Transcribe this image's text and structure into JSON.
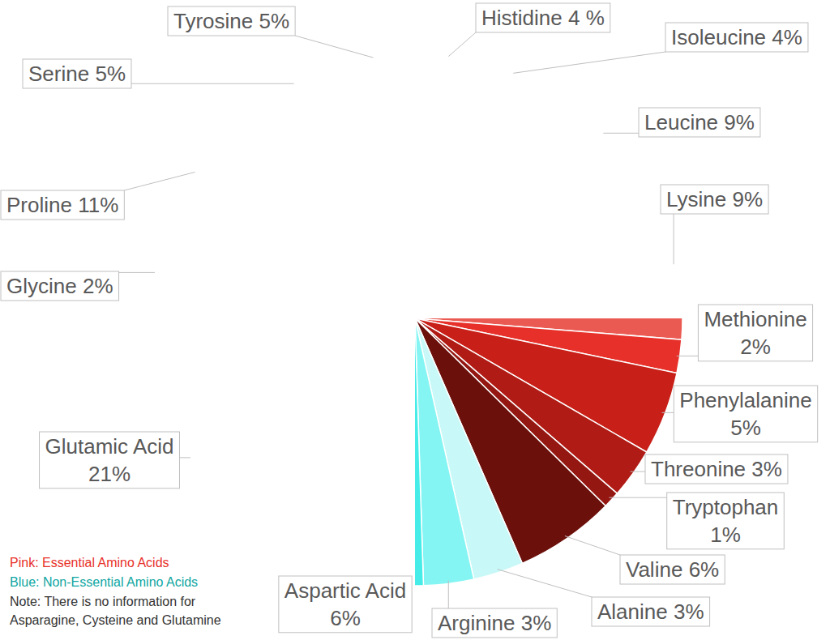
{
  "chart_data": {
    "type": "pie",
    "categories": [
      "Histidine",
      "Isoleucine",
      "Leucine",
      "Lysine",
      "Methionine",
      "Phenylalanine",
      "Threonine",
      "Tryptophan",
      "Valine",
      "Alanine",
      "Arginine",
      "Aspartic Acid",
      "Glutamic Acid",
      "Glycine",
      "Proline",
      "Serine",
      "Tyrosine"
    ],
    "values": [
      4,
      4,
      9,
      9,
      2,
      5,
      3,
      1,
      6,
      3,
      3,
      6,
      21,
      2,
      11,
      5,
      5
    ],
    "value_labels": [
      "4 %",
      "4%",
      "9%",
      "9%",
      "2%",
      "5%",
      "3%",
      "1%",
      "6%",
      "3%",
      "3%",
      "6%",
      "21%",
      "2%",
      "11%",
      "5%",
      "5%"
    ],
    "colors": [
      "#f4a7a3",
      "#f28f8a",
      "#ef7670",
      "#eb5a52",
      "#e8302a",
      "#c81f18",
      "#b01b15",
      "#951712",
      "#6b100b",
      "#c8f8f7",
      "#85f5f3",
      "#45ece8",
      "#15efea",
      "#14c9c6",
      "#0ea6a2",
      "#0b8581",
      "#075c58"
    ],
    "data_labels": true,
    "annotations": [
      "Pink: Essential Amino Acids",
      "Blue: Non-Essential Amino Acids",
      "Note: There is no information for",
      "Asparagine, Cysteine and Glutamine"
    ]
  }
}
